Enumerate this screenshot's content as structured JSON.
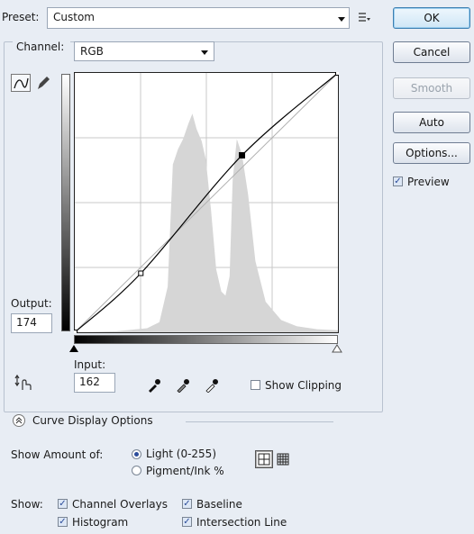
{
  "preset": {
    "label": "Preset:",
    "value": "Custom"
  },
  "buttons": {
    "ok": "OK",
    "cancel": "Cancel",
    "smooth": "Smooth",
    "auto": "Auto",
    "options": "Options..."
  },
  "preview": {
    "label": "Preview",
    "checked": true
  },
  "channel": {
    "label": "Channel:",
    "value": "RGB"
  },
  "output": {
    "label": "Output:",
    "value": "174"
  },
  "input": {
    "label": "Input:",
    "value": "162"
  },
  "show_clipping": {
    "label": "Show Clipping",
    "checked": false
  },
  "curve_display_options": {
    "label": "Curve Display Options"
  },
  "show_amount": {
    "label": "Show Amount of:",
    "options": [
      "Light  (0-255)",
      "Pigment/Ink %"
    ],
    "selected": "Light  (0-255)"
  },
  "show": {
    "label": "Show:",
    "items": [
      {
        "label": "Channel Overlays",
        "checked": true
      },
      {
        "label": "Baseline",
        "checked": true
      },
      {
        "label": "Histogram",
        "checked": true
      },
      {
        "label": "Intersection Line",
        "checked": true
      }
    ]
  },
  "curve": {
    "points": [
      [
        0,
        0
      ],
      [
        64,
        58
      ],
      [
        162,
        174
      ],
      [
        255,
        255
      ]
    ]
  },
  "colors": {
    "histogram": "#d6d6d6",
    "curve": "#000000",
    "baseline": "#b0b0b0"
  }
}
